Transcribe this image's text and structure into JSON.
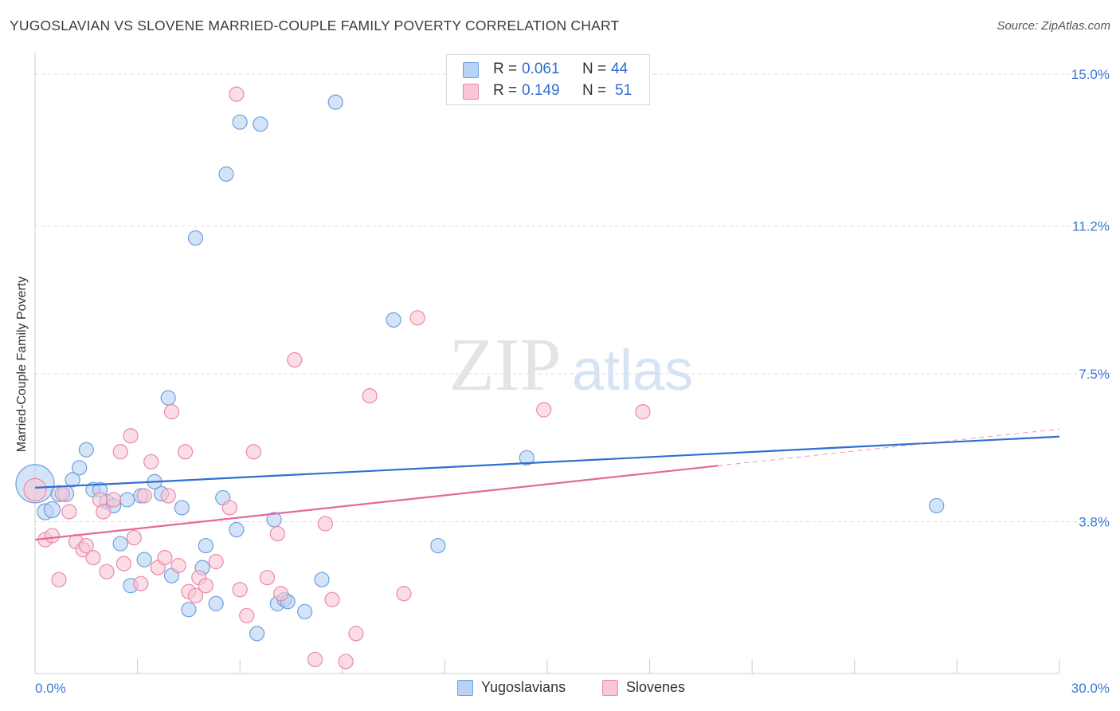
{
  "title": "YUGOSLAVIAN VS SLOVENE MARRIED-COUPLE FAMILY POVERTY CORRELATION CHART",
  "source": "Source: ZipAtlas.com",
  "watermark": {
    "zip": "ZIP",
    "atlas": "atlas"
  },
  "legend_top": {
    "r_label": "R =",
    "n_label": "N =",
    "rows": [
      {
        "r": "0.061",
        "n": "44"
      },
      {
        "r": "0.149",
        "n": "51"
      }
    ]
  },
  "colors": {
    "blue_fill": "#b8d2f3",
    "blue_stroke": "#6f9fdc",
    "blue_line": "#2f6fcf",
    "pink_fill": "#f9c6d6",
    "pink_stroke": "#e88aa8",
    "pink_line": "#e46a93",
    "tick_label": "#3f78d3",
    "grid": "#dcdcdc"
  },
  "chart_data": {
    "type": "scatter",
    "title": "YUGOSLAVIAN VS SLOVENE MARRIED-COUPLE FAMILY POVERTY CORRELATION CHART",
    "xlabel": "",
    "ylabel": "Married-Couple Family Poverty",
    "xlim": [
      0,
      30
    ],
    "ylim": [
      0,
      15.3
    ],
    "x_tick_labels": [
      "0.0%",
      "30.0%"
    ],
    "y_ticks": [
      3.8,
      7.5,
      11.2,
      15.0
    ],
    "y_tick_labels": [
      "3.8%",
      "7.5%",
      "11.2%",
      "15.0%"
    ],
    "grid": true,
    "legend_position": "bottom-center",
    "series": [
      {
        "name": "Yugoslavians",
        "color": "#6f9fdc",
        "points": [
          [
            0.0,
            4.75,
            24
          ],
          [
            0.3,
            4.05,
            10
          ],
          [
            0.5,
            4.1,
            10
          ],
          [
            0.7,
            4.5,
            10
          ],
          [
            0.9,
            4.5,
            10
          ],
          [
            1.1,
            4.85,
            9
          ],
          [
            1.3,
            5.15,
            9
          ],
          [
            1.5,
            5.6,
            9
          ],
          [
            1.7,
            4.6,
            9
          ],
          [
            1.9,
            4.6,
            9
          ],
          [
            2.1,
            4.3,
            9
          ],
          [
            2.3,
            4.2,
            9
          ],
          [
            2.5,
            3.25,
            9
          ],
          [
            2.7,
            4.35,
            9
          ],
          [
            2.8,
            2.2,
            9
          ],
          [
            3.1,
            4.45,
            9
          ],
          [
            3.2,
            2.85,
            9
          ],
          [
            3.5,
            4.8,
            9
          ],
          [
            3.7,
            4.5,
            9
          ],
          [
            3.9,
            6.9,
            9
          ],
          [
            4.0,
            2.45,
            9
          ],
          [
            4.3,
            4.15,
            9
          ],
          [
            4.5,
            1.6,
            9
          ],
          [
            4.7,
            10.9,
            9
          ],
          [
            4.9,
            2.65,
            9
          ],
          [
            5.0,
            3.2,
            9
          ],
          [
            5.3,
            1.75,
            9
          ],
          [
            5.5,
            4.4,
            9
          ],
          [
            5.6,
            12.5,
            9
          ],
          [
            5.9,
            3.6,
            9
          ],
          [
            6.0,
            13.8,
            9
          ],
          [
            6.5,
            1.0,
            9
          ],
          [
            6.6,
            13.75,
            9
          ],
          [
            7.0,
            3.85,
            9
          ],
          [
            7.1,
            1.75,
            9
          ],
          [
            7.3,
            1.85,
            9
          ],
          [
            7.4,
            1.8,
            9
          ],
          [
            7.9,
            1.55,
            9
          ],
          [
            8.4,
            2.35,
            9
          ],
          [
            8.8,
            14.3,
            9
          ],
          [
            10.5,
            8.85,
            9
          ],
          [
            11.8,
            3.2,
            9
          ],
          [
            14.4,
            5.4,
            9
          ],
          [
            26.4,
            4.2,
            9
          ]
        ]
      },
      {
        "name": "Slovenes",
        "color": "#e88aa8",
        "points": [
          [
            0.0,
            4.6,
            14
          ],
          [
            0.3,
            3.35,
            9
          ],
          [
            0.5,
            3.45,
            9
          ],
          [
            0.7,
            2.35,
            9
          ],
          [
            0.8,
            4.5,
            9
          ],
          [
            1.0,
            4.05,
            9
          ],
          [
            1.2,
            3.3,
            9
          ],
          [
            1.4,
            3.1,
            9
          ],
          [
            1.5,
            3.2,
            9
          ],
          [
            1.7,
            2.9,
            9
          ],
          [
            1.9,
            4.35,
            9
          ],
          [
            2.0,
            4.05,
            9
          ],
          [
            2.1,
            2.55,
            9
          ],
          [
            2.3,
            4.35,
            9
          ],
          [
            2.5,
            5.55,
            9
          ],
          [
            2.6,
            2.75,
            9
          ],
          [
            2.8,
            5.95,
            9
          ],
          [
            2.9,
            3.4,
            9
          ],
          [
            3.1,
            2.25,
            9
          ],
          [
            3.2,
            4.45,
            9
          ],
          [
            3.4,
            5.3,
            9
          ],
          [
            3.6,
            2.65,
            9
          ],
          [
            3.8,
            2.9,
            9
          ],
          [
            3.9,
            4.45,
            9
          ],
          [
            4.0,
            6.55,
            9
          ],
          [
            4.2,
            2.7,
            9
          ],
          [
            4.4,
            5.55,
            9
          ],
          [
            4.5,
            2.05,
            9
          ],
          [
            4.7,
            1.95,
            9
          ],
          [
            4.8,
            2.4,
            9
          ],
          [
            5.0,
            2.2,
            9
          ],
          [
            5.3,
            2.8,
            9
          ],
          [
            5.7,
            4.15,
            9
          ],
          [
            5.9,
            14.5,
            9
          ],
          [
            6.0,
            2.1,
            9
          ],
          [
            6.2,
            1.45,
            9
          ],
          [
            6.4,
            5.55,
            9
          ],
          [
            6.8,
            2.4,
            9
          ],
          [
            7.1,
            3.5,
            9
          ],
          [
            7.2,
            2.0,
            9
          ],
          [
            7.6,
            7.85,
            9
          ],
          [
            8.2,
            0.35,
            9
          ],
          [
            8.5,
            3.75,
            9
          ],
          [
            8.7,
            1.85,
            9
          ],
          [
            9.1,
            0.3,
            9
          ],
          [
            9.4,
            1.0,
            9
          ],
          [
            9.8,
            6.95,
            9
          ],
          [
            10.8,
            2.0,
            9
          ],
          [
            11.2,
            8.9,
            9
          ],
          [
            14.9,
            6.6,
            9
          ],
          [
            17.8,
            6.55,
            9
          ]
        ]
      }
    ],
    "trendlines": [
      {
        "series": "Yugoslavians",
        "x": [
          0,
          30
        ],
        "y": [
          4.65,
          5.93
        ],
        "style": "solid"
      },
      {
        "series": "Slovenes",
        "x": [
          0,
          20
        ],
        "y": [
          3.35,
          5.2
        ],
        "style": "solid"
      },
      {
        "series": "Slovenes",
        "x": [
          20,
          30
        ],
        "y": [
          5.2,
          6.12
        ],
        "style": "dashed"
      }
    ]
  },
  "legend_bottom": [
    {
      "label": "Yugoslavians",
      "swatch": "blue"
    },
    {
      "label": "Slovenes",
      "swatch": "pink"
    }
  ]
}
